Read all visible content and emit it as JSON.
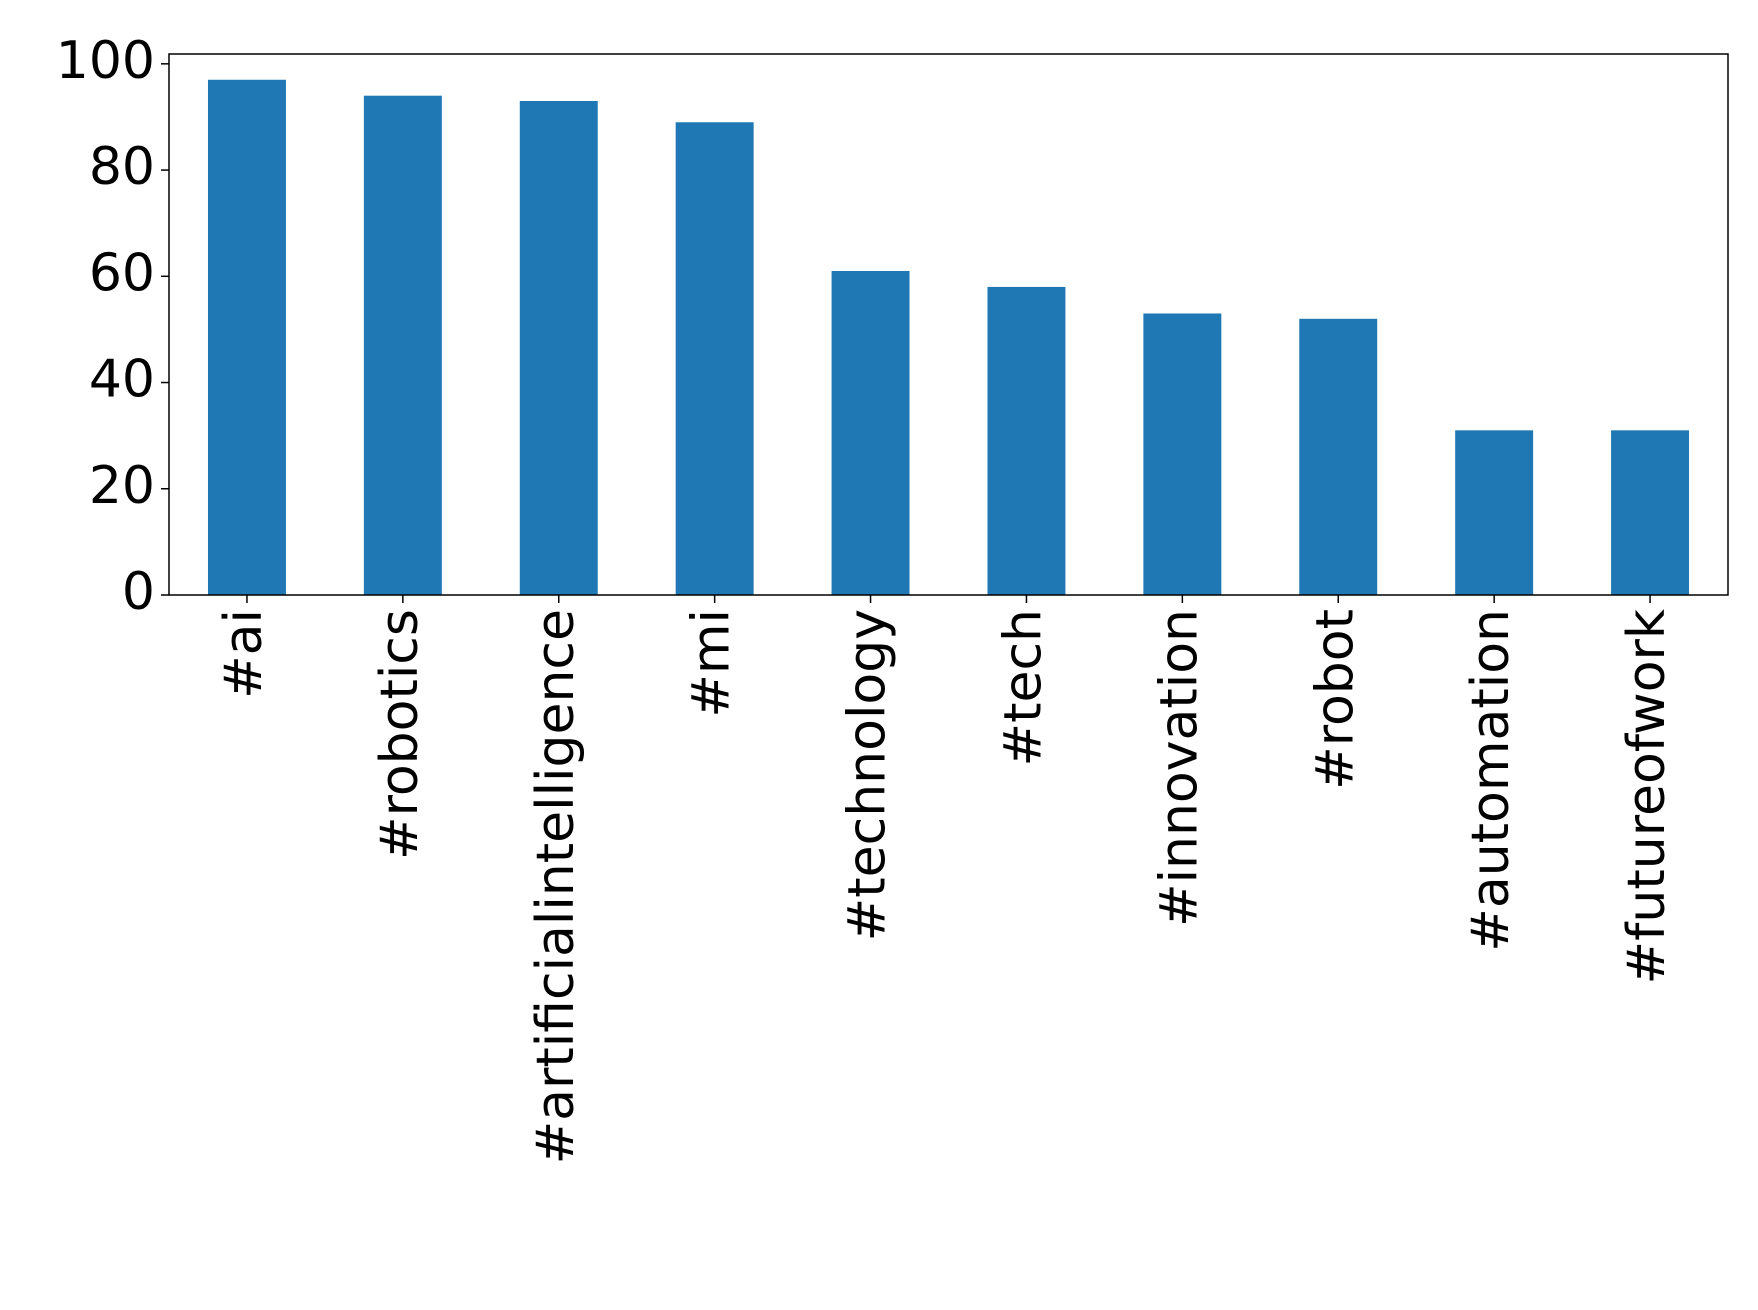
{
  "chart_data": {
    "type": "bar",
    "categories": [
      "#ai",
      "#robotics",
      "#artificialintelligence",
      "#mi",
      "#technology",
      "#tech",
      "#innovation",
      "#robot",
      "#automation",
      "#futureofwork"
    ],
    "values": [
      97,
      94,
      93,
      89,
      61,
      58,
      53,
      52,
      31,
      31
    ],
    "color": "#1f77b4",
    "ylim": [
      0,
      101.85
    ],
    "yticks": [
      0,
      20,
      40,
      60,
      80,
      100
    ],
    "grid": false
  }
}
